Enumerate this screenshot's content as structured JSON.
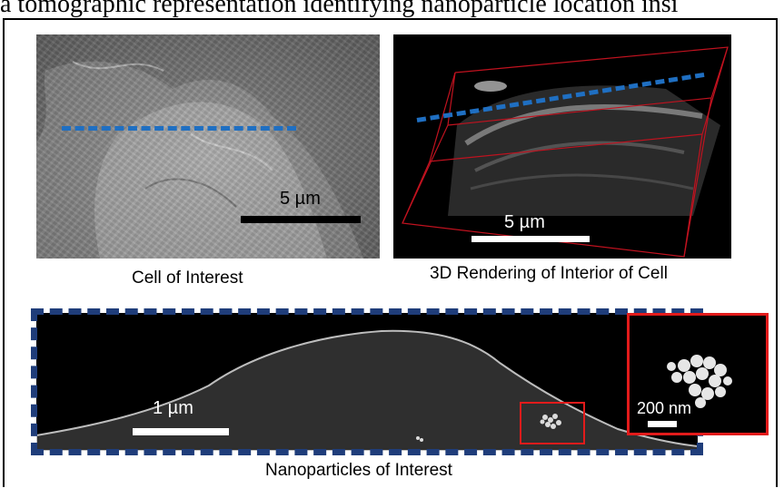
{
  "header": {
    "text": "a tomographic representation identifying nanoparticle location insi"
  },
  "panels": {
    "sem": {
      "caption": "Cell of Interest",
      "scale_label": "5 µm"
    },
    "render": {
      "caption": "3D Rendering of Interior of Cell",
      "scale_label": "5 µm"
    },
    "nano": {
      "caption": "Nanoparticles of Interest",
      "scale_label": "1 µm",
      "inset_scale_label": "200 nm"
    }
  },
  "colors": {
    "dashed_line": "#1f6fc2",
    "frame_dashed": "#1f3d7a",
    "highlight": "#e21b1b"
  }
}
